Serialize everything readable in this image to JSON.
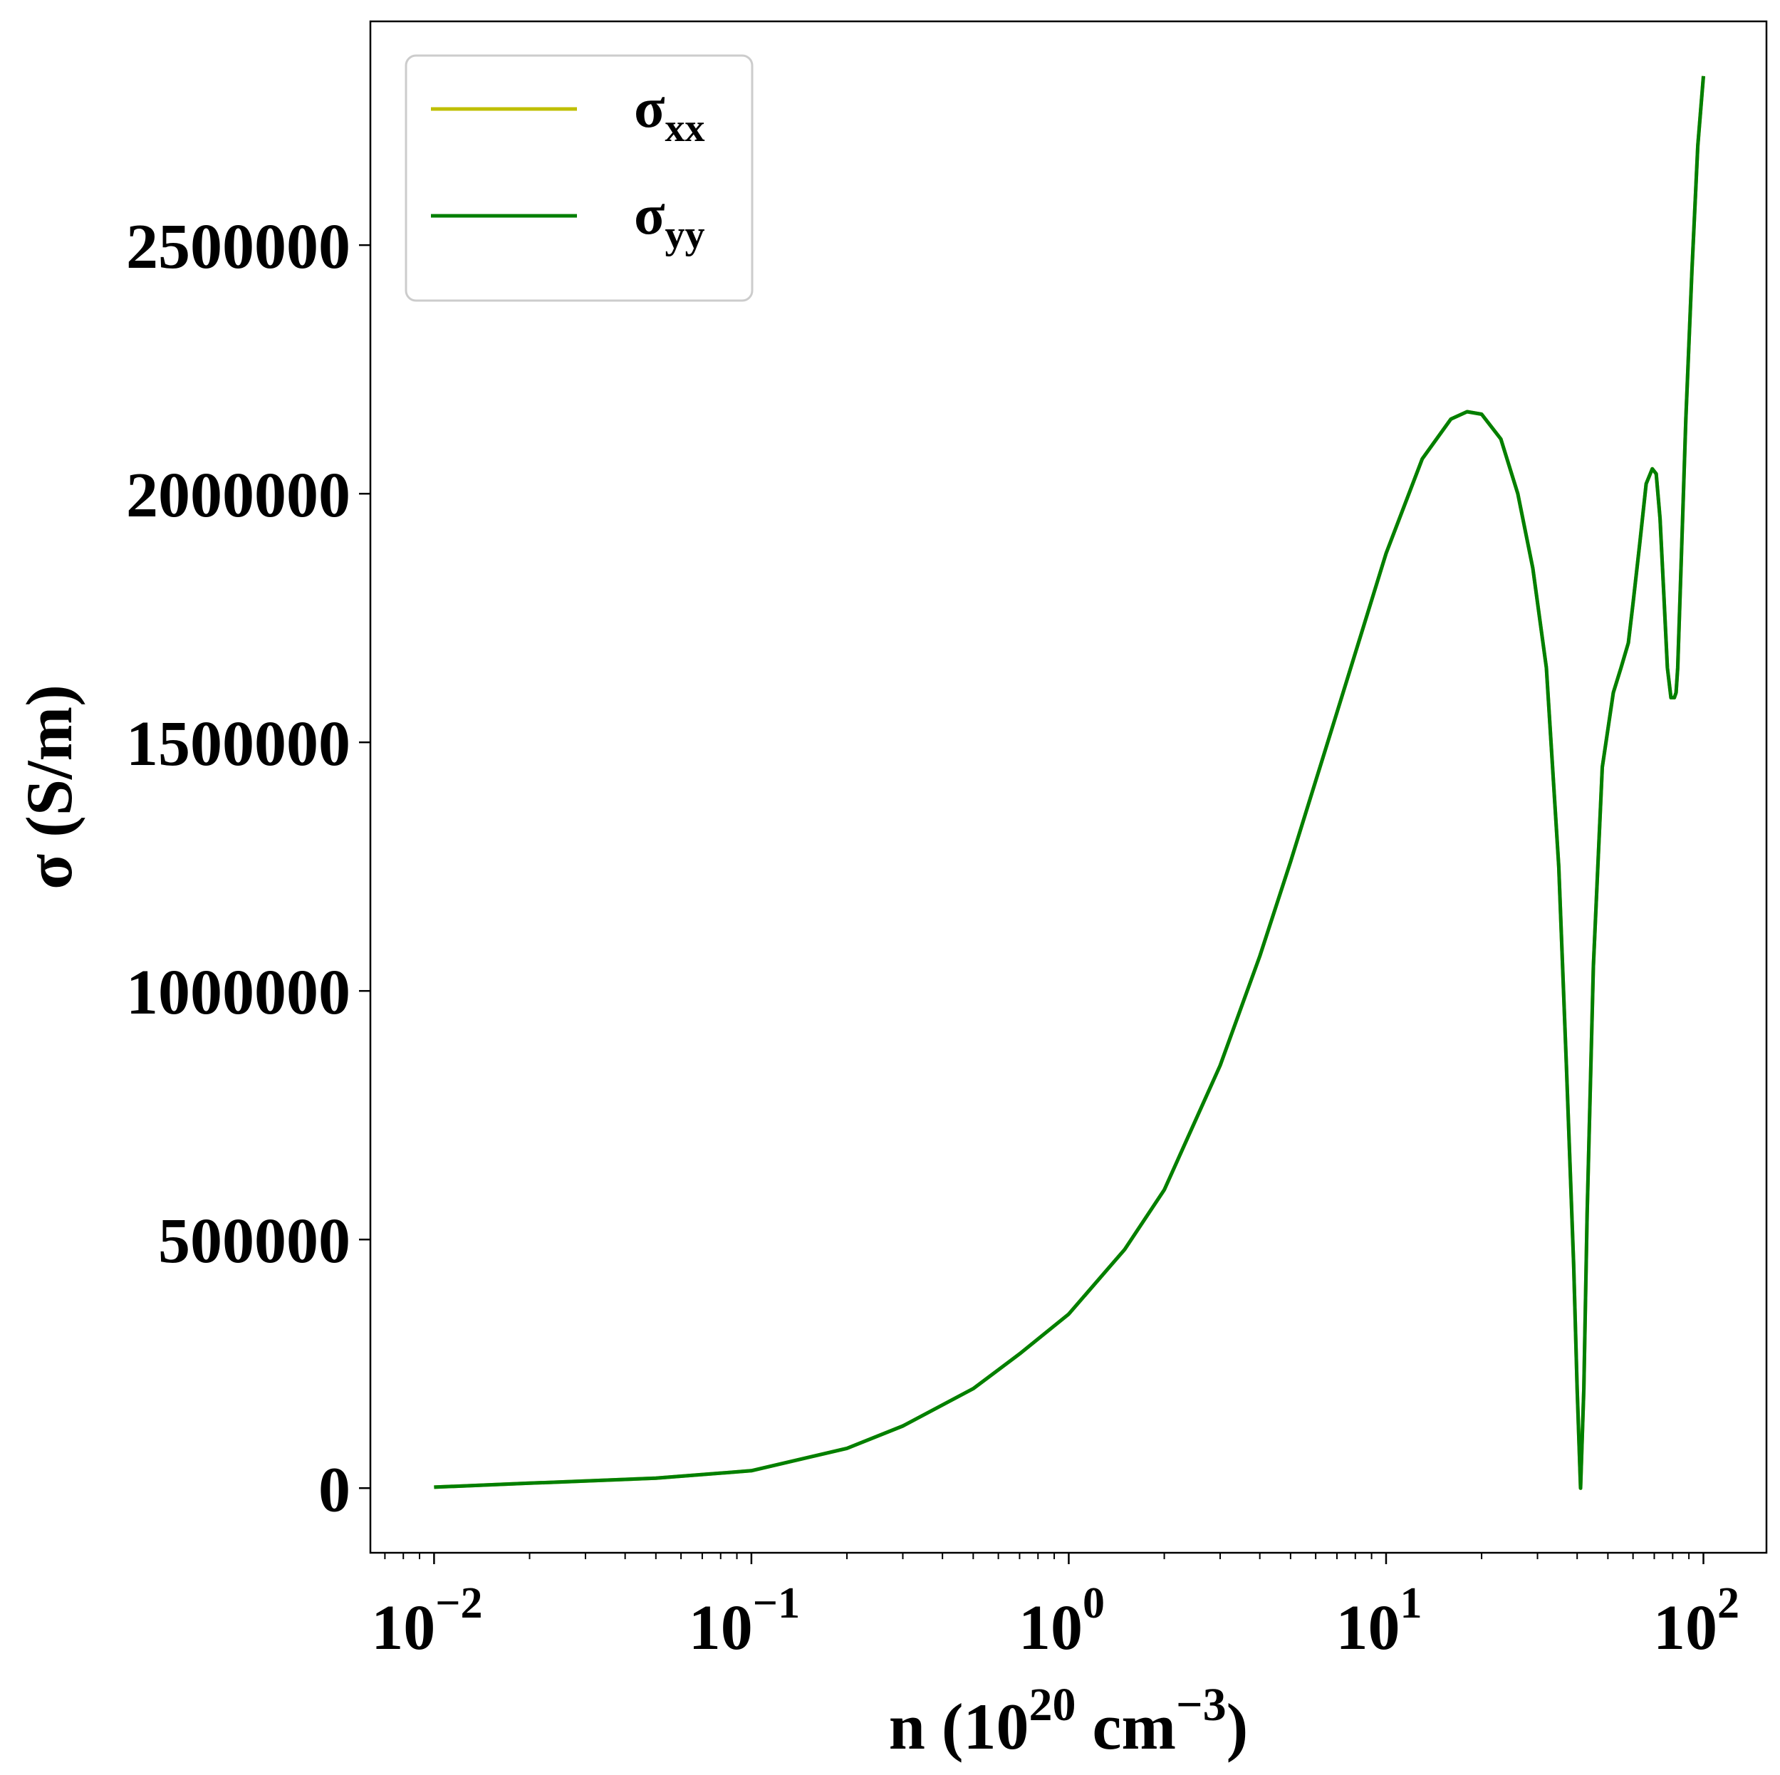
{
  "chart_data": {
    "type": "line",
    "title": "",
    "xlabel": {
      "base": "n (10",
      "exp1": "20",
      "mid": " cm",
      "exp2": "−3",
      "end": ")"
    },
    "ylabel": "σ (S/m)",
    "xscale": "log",
    "xlim": [
      0.0063,
      158
    ],
    "ylim": [
      -130000,
      2950000
    ],
    "grid": false,
    "legend_position": "top-left",
    "x_ticks": [
      {
        "value": 0.01,
        "base": "10",
        "exp": "−2"
      },
      {
        "value": 0.1,
        "base": "10",
        "exp": "−1"
      },
      {
        "value": 1,
        "base": "10",
        "exp": "0"
      },
      {
        "value": 10,
        "base": "10",
        "exp": "1"
      },
      {
        "value": 100,
        "base": "10",
        "exp": "2"
      }
    ],
    "y_ticks": [
      {
        "value": 0,
        "label": "0"
      },
      {
        "value": 500000,
        "label": "500000"
      },
      {
        "value": 1000000,
        "label": "1000000"
      },
      {
        "value": 1500000,
        "label": "1500000"
      },
      {
        "value": 2000000,
        "label": "2000000"
      },
      {
        "value": 2500000,
        "label": "2500000"
      }
    ],
    "series": [
      {
        "name": {
          "base": "σ",
          "sub": "xx"
        },
        "color": "#bfbf00",
        "x": [
          0.01,
          0.02,
          0.05,
          0.1,
          0.2,
          0.3,
          0.5,
          0.7,
          1,
          1.5,
          2,
          3,
          4,
          5,
          7,
          10,
          13,
          16,
          18,
          20,
          23,
          26,
          29,
          32,
          35,
          37,
          39,
          40,
          41,
          42,
          43,
          45,
          48,
          52,
          55,
          58,
          60,
          63,
          66,
          69,
          71,
          73,
          75,
          77,
          79,
          81,
          82,
          83,
          85,
          88,
          92,
          96,
          100
        ],
        "y": [
          2000,
          10000,
          20000,
          35000,
          80000,
          125000,
          200000,
          270000,
          350000,
          480000,
          600000,
          850000,
          1070000,
          1260000,
          1560000,
          1880000,
          2070000,
          2150000,
          2165000,
          2160000,
          2110000,
          2000000,
          1850000,
          1650000,
          1250000,
          850000,
          450000,
          200000,
          0,
          200000,
          550000,
          1050000,
          1450000,
          1600000,
          1650000,
          1700000,
          1780000,
          1900000,
          2020000,
          2050000,
          2040000,
          1950000,
          1800000,
          1650000,
          1590000,
          1590000,
          1600000,
          1650000,
          1850000,
          2150000,
          2450000,
          2700000,
          2840000
        ]
      },
      {
        "name": {
          "base": "σ",
          "sub": "yy"
        },
        "color": "#007f00",
        "x": [
          0.01,
          0.02,
          0.05,
          0.1,
          0.2,
          0.3,
          0.5,
          0.7,
          1,
          1.5,
          2,
          3,
          4,
          5,
          7,
          10,
          13,
          16,
          18,
          20,
          23,
          26,
          29,
          32,
          35,
          37,
          39,
          40,
          41,
          42,
          43,
          45,
          48,
          52,
          55,
          58,
          60,
          63,
          66,
          69,
          71,
          73,
          75,
          77,
          79,
          81,
          82,
          83,
          85,
          88,
          92,
          96,
          100
        ],
        "y": [
          2000,
          10000,
          20000,
          35000,
          80000,
          125000,
          200000,
          270000,
          350000,
          480000,
          600000,
          850000,
          1070000,
          1260000,
          1560000,
          1880000,
          2070000,
          2150000,
          2165000,
          2160000,
          2110000,
          2000000,
          1850000,
          1650000,
          1250000,
          850000,
          450000,
          200000,
          0,
          200000,
          550000,
          1050000,
          1450000,
          1600000,
          1650000,
          1700000,
          1780000,
          1900000,
          2020000,
          2050000,
          2040000,
          1950000,
          1800000,
          1650000,
          1590000,
          1590000,
          1600000,
          1650000,
          1850000,
          2150000,
          2450000,
          2700000,
          2840000
        ]
      }
    ]
  }
}
